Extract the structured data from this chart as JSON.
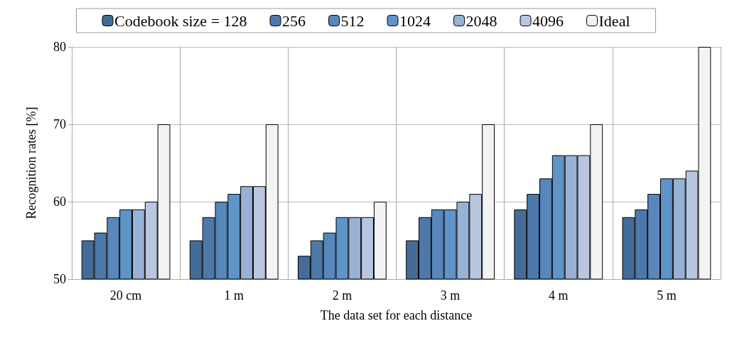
{
  "chart_data": {
    "type": "bar",
    "xlabel": "The data set for each distance",
    "ylabel": "Recognition rates [%]",
    "categories": [
      "20 cm",
      "1 m",
      "2 m",
      "3 m",
      "4 m",
      "5 m"
    ],
    "series": [
      {
        "name": "Codebook size = 128",
        "color": "#436c98",
        "values": [
          55,
          55,
          53,
          55,
          59,
          58
        ]
      },
      {
        "name": "256",
        "color": "#4d79aa",
        "values": [
          56,
          58,
          55,
          58,
          61,
          59
        ]
      },
      {
        "name": "512",
        "color": "#5787bb",
        "values": [
          58,
          60,
          56,
          59,
          63,
          61
        ]
      },
      {
        "name": "1024",
        "color": "#5e94c8",
        "values": [
          59,
          61,
          58,
          59,
          66,
          63
        ]
      },
      {
        "name": "2048",
        "color": "#98b2d6",
        "values": [
          59,
          62,
          58,
          60,
          66,
          63
        ]
      },
      {
        "name": "4096",
        "color": "#b8c6e0",
        "values": [
          60,
          62,
          58,
          61,
          66,
          64
        ]
      },
      {
        "name": "Ideal",
        "color": "#f3f3f3",
        "values": [
          70,
          70,
          60,
          70,
          70,
          80
        ]
      }
    ],
    "ylim": [
      50,
      80
    ],
    "yticks": [
      50,
      60,
      70,
      80
    ],
    "grid": true,
    "legend": "top"
  }
}
